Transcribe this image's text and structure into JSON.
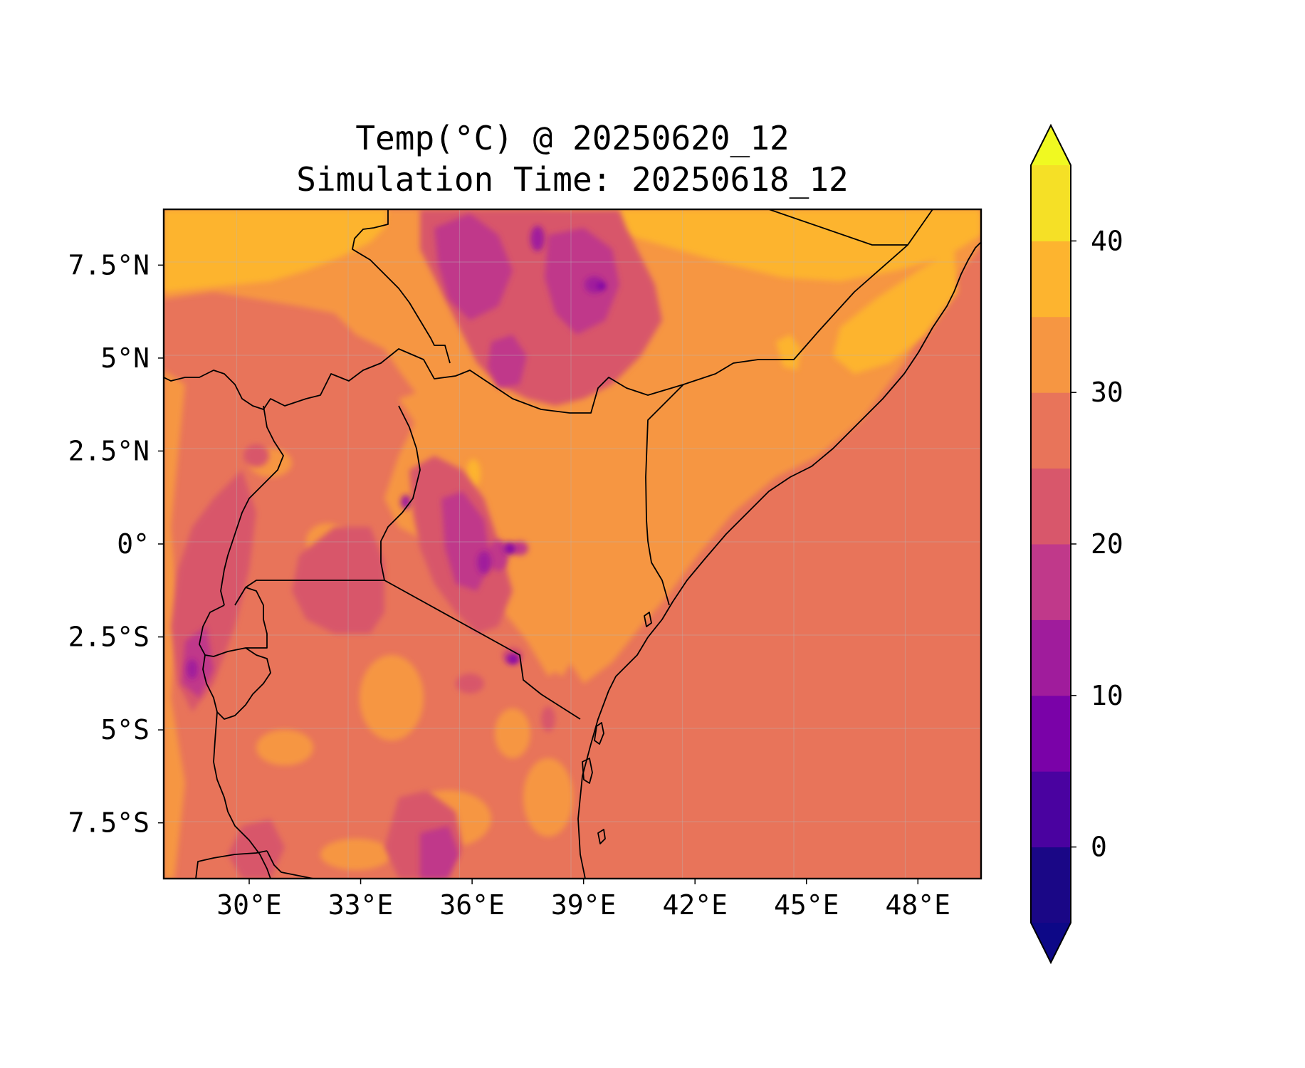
{
  "title": {
    "line1": "Temp(°C) @ 20250620_12",
    "line2": "Simulation Time: 20250618_12"
  },
  "map": {
    "lon_range": [
      27.7,
      49.7
    ],
    "lat_range": [
      -9.0,
      9.0
    ],
    "x_ticks": [
      {
        "value": 30,
        "label": "30°E"
      },
      {
        "value": 33,
        "label": "33°E"
      },
      {
        "value": 36,
        "label": "36°E"
      },
      {
        "value": 39,
        "label": "39°E"
      },
      {
        "value": 42,
        "label": "42°E"
      },
      {
        "value": 45,
        "label": "45°E"
      },
      {
        "value": 48,
        "label": "48°E"
      }
    ],
    "y_ticks": [
      {
        "value": 7.5,
        "label": "7.5°N"
      },
      {
        "value": 5,
        "label": "5°N"
      },
      {
        "value": 2.5,
        "label": "2.5°N"
      },
      {
        "value": 0,
        "label": "0°"
      },
      {
        "value": -2.5,
        "label": "2.5°S"
      },
      {
        "value": -5,
        "label": "5°S"
      },
      {
        "value": -7.5,
        "label": "7.5°S"
      }
    ],
    "gridlines": true,
    "ocean_color": "#e8745a",
    "boundary_color": "#000000"
  },
  "colorbar": {
    "colormap": "plasma",
    "extend": "both",
    "levels": [
      -5,
      0,
      5,
      10,
      15,
      20,
      25,
      30,
      35,
      40,
      45
    ],
    "colors": [
      "#1a0786",
      "#4a02a0",
      "#7a02a8",
      "#a01c9c",
      "#c0398a",
      "#d8576b",
      "#e8745a",
      "#f69642",
      "#fdb42f",
      "#f5e026"
    ],
    "under_color": "#0d0887",
    "over_color": "#f0f921",
    "ticks": [
      {
        "value": 0,
        "label": "0"
      },
      {
        "value": 10,
        "label": "10"
      },
      {
        "value": 20,
        "label": "20"
      },
      {
        "value": 30,
        "label": "30"
      },
      {
        "value": 40,
        "label": "40"
      }
    ]
  }
}
